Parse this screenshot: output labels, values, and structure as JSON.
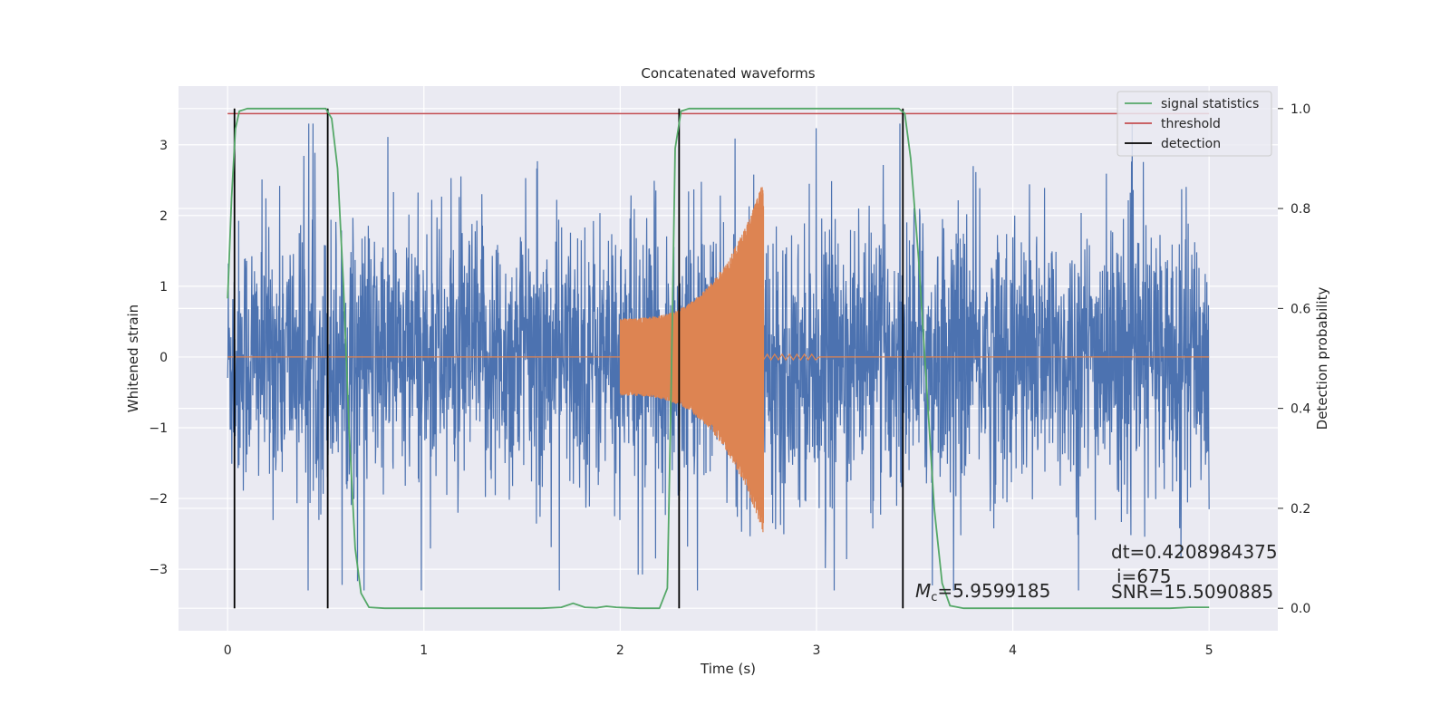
{
  "chart_data": {
    "type": "line",
    "title": "Concatenated waveforms",
    "xlabel": "Time (s)",
    "ylabel": "Whitened strain",
    "y2label": "Detection probability",
    "xlim": [
      -0.25,
      5.35
    ],
    "ylim": [
      -3.87,
      3.83
    ],
    "y2lim": [
      -0.045,
      1.045
    ],
    "xticks": [
      0,
      1,
      2,
      3,
      4,
      5
    ],
    "yticks": [
      -3,
      -2,
      -1,
      0,
      1,
      2,
      3
    ],
    "y2ticks": [
      0.0,
      0.2,
      0.4,
      0.6,
      0.8,
      1.0
    ],
    "x_tick_labels": [
      "0",
      "1",
      "2",
      "3",
      "4",
      "5"
    ],
    "y_tick_labels": [
      "−3",
      "−2",
      "−1",
      "0",
      "1",
      "2",
      "3"
    ],
    "y2_tick_labels": [
      "0.0",
      "0.2",
      "0.4",
      "0.6",
      "0.8",
      "1.0"
    ],
    "grid": true,
    "legend_position": "top-right",
    "legend": [
      {
        "label": "signal statistics",
        "color": "#55a868"
      },
      {
        "label": "threshold",
        "color": "#c44e52"
      },
      {
        "label": "detection",
        "color": "#000000"
      }
    ],
    "series": [
      {
        "name": "strain",
        "color": "#4c72b0",
        "axis": "left",
        "x_range": [
          0,
          5
        ],
        "typical_amplitude": 1.0,
        "peak_amplitude": 3.3
      },
      {
        "name": "chirp",
        "color": "#dd8452",
        "axis": "left",
        "x_start": 2.0,
        "x_end": 2.73,
        "amplitude_start": 0.55,
        "amplitude_end": 2.5
      },
      {
        "name": "signal statistics",
        "color": "#55a868",
        "axis": "right",
        "points": [
          [
            0.0,
            0.62
          ],
          [
            0.02,
            0.82
          ],
          [
            0.04,
            0.96
          ],
          [
            0.06,
            0.995
          ],
          [
            0.1,
            1.0
          ],
          [
            0.45,
            1.0
          ],
          [
            0.5,
            1.0
          ],
          [
            0.53,
            0.98
          ],
          [
            0.56,
            0.88
          ],
          [
            0.59,
            0.65
          ],
          [
            0.62,
            0.35
          ],
          [
            0.65,
            0.12
          ],
          [
            0.68,
            0.03
          ],
          [
            0.72,
            0.002
          ],
          [
            0.8,
            0.0
          ],
          [
            1.6,
            0.0
          ],
          [
            1.7,
            0.002
          ],
          [
            1.76,
            0.01
          ],
          [
            1.82,
            0.002
          ],
          [
            1.88,
            0.001
          ],
          [
            1.93,
            0.004
          ],
          [
            1.98,
            0.002
          ],
          [
            2.1,
            0.0
          ],
          [
            2.2,
            0.0
          ],
          [
            2.24,
            0.04
          ],
          [
            2.26,
            0.45
          ],
          [
            2.28,
            0.92
          ],
          [
            2.31,
            0.995
          ],
          [
            2.35,
            1.0
          ],
          [
            3.42,
            1.0
          ],
          [
            3.45,
            0.99
          ],
          [
            3.48,
            0.9
          ],
          [
            3.52,
            0.7
          ],
          [
            3.56,
            0.45
          ],
          [
            3.6,
            0.2
          ],
          [
            3.64,
            0.05
          ],
          [
            3.68,
            0.005
          ],
          [
            3.75,
            0.0
          ],
          [
            4.8,
            0.0
          ],
          [
            4.9,
            0.002
          ],
          [
            5.0,
            0.002
          ]
        ]
      },
      {
        "name": "threshold",
        "color": "#c44e52",
        "axis": "right",
        "value": 0.99
      },
      {
        "name": "detection",
        "color": "#000000",
        "axis": "right",
        "x": [
          0.035,
          0.51,
          2.3,
          3.44
        ],
        "range": [
          0.0,
          1.0
        ]
      }
    ],
    "annotations": {
      "mc_label": "M",
      "mc_sub": "c",
      "mc_value": "=5.9599185",
      "dt": "dt=0.4208984375",
      "index": "i=675",
      "snr": "SNR=15.5090885"
    }
  }
}
